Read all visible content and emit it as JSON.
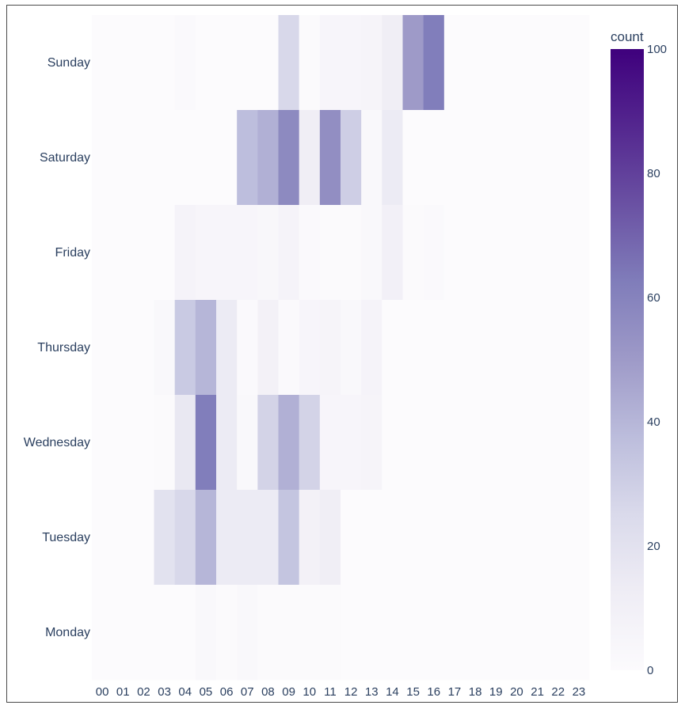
{
  "chart_data": {
    "type": "heatmap",
    "colorbar_title": "count",
    "colorscale": [
      "#fcfbfd",
      "#efedf5",
      "#dadaeb",
      "#bcbddc",
      "#9e9ac8",
      "#807dba",
      "#6a51a3",
      "#54278f",
      "#3f007d"
    ],
    "zmin": 0,
    "zmax": 100,
    "colorbar_ticks": [
      0,
      20,
      40,
      60,
      80,
      100
    ],
    "x": [
      "00",
      "01",
      "02",
      "03",
      "04",
      "05",
      "06",
      "07",
      "08",
      "09",
      "10",
      "11",
      "12",
      "13",
      "14",
      "15",
      "16",
      "17",
      "18",
      "19",
      "20",
      "21",
      "22",
      "23"
    ],
    "y": [
      "Sunday",
      "Saturday",
      "Friday",
      "Thursday",
      "Wednesday",
      "Tuesday",
      "Monday"
    ],
    "z": [
      [
        0,
        0,
        0,
        0,
        2,
        0,
        0,
        0,
        0,
        26,
        1,
        5,
        5,
        6,
        12,
        50,
        62,
        0,
        0,
        0,
        0,
        0,
        0,
        0
      ],
      [
        0,
        0,
        0,
        0,
        0,
        0,
        0,
        37,
        42,
        57,
        12,
        55,
        30,
        3,
        14,
        0,
        0,
        0,
        0,
        0,
        0,
        0,
        0,
        0
      ],
      [
        0,
        0,
        0,
        0,
        7,
        5,
        5,
        5,
        4,
        7,
        2,
        1,
        1,
        3,
        10,
        1,
        2,
        0,
        0,
        0,
        0,
        0,
        0,
        0
      ],
      [
        0,
        0,
        0,
        3,
        32,
        40,
        14,
        2,
        9,
        2,
        5,
        6,
        3,
        7,
        0,
        0,
        0,
        0,
        0,
        0,
        0,
        0,
        0,
        0
      ],
      [
        0,
        0,
        0,
        1,
        16,
        62,
        14,
        3,
        28,
        42,
        28,
        5,
        5,
        6,
        0,
        0,
        0,
        0,
        0,
        0,
        0,
        0,
        0,
        0
      ],
      [
        0,
        0,
        0,
        20,
        26,
        40,
        14,
        14,
        14,
        34,
        9,
        12,
        0,
        0,
        0,
        0,
        0,
        0,
        0,
        0,
        0,
        0,
        0,
        0
      ],
      [
        0,
        0,
        0,
        0,
        0,
        3,
        1,
        3,
        1,
        1,
        1,
        1,
        0,
        0,
        0,
        0,
        0,
        0,
        0,
        0,
        0,
        0,
        0,
        0
      ]
    ]
  }
}
